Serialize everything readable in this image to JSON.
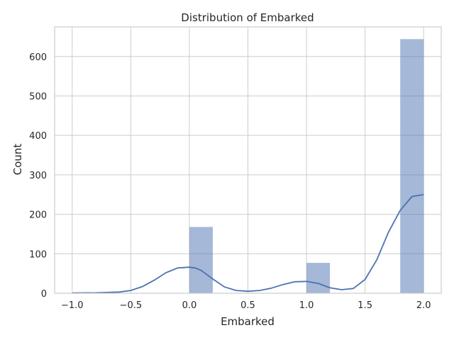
{
  "chart_data": {
    "type": "bar",
    "title": "Distribution of Embarked",
    "xlabel": "Embarked",
    "ylabel": "Count",
    "xlim": [
      -1.15,
      2.15
    ],
    "ylim": [
      0,
      675
    ],
    "x_ticks": [
      -1.0,
      -0.5,
      0.0,
      0.5,
      1.0,
      1.5,
      2.0
    ],
    "x_tick_labels": [
      "−1.0",
      "−0.5",
      "0.0",
      "0.5",
      "1.0",
      "1.5",
      "2.0"
    ],
    "y_ticks": [
      0,
      100,
      200,
      300,
      400,
      500,
      600
    ],
    "y_tick_labels": [
      "0",
      "100",
      "200",
      "300",
      "400",
      "500",
      "600"
    ],
    "grid": true,
    "bins": [
      {
        "x0": -1.0,
        "x1": -0.8,
        "count": 2
      },
      {
        "x0": 0.0,
        "x1": 0.2,
        "count": 168
      },
      {
        "x0": 1.0,
        "x1": 1.2,
        "count": 77
      },
      {
        "x0": 1.8,
        "x1": 2.0,
        "count": 644
      }
    ],
    "kde": {
      "x": [
        -1.0,
        -0.8,
        -0.6,
        -0.5,
        -0.4,
        -0.3,
        -0.2,
        -0.1,
        0.0,
        0.05,
        0.1,
        0.2,
        0.3,
        0.4,
        0.5,
        0.6,
        0.7,
        0.8,
        0.9,
        1.0,
        1.1,
        1.2,
        1.3,
        1.4,
        1.5,
        1.6,
        1.7,
        1.8,
        1.9,
        2.0
      ],
      "y": [
        0.5,
        1,
        3,
        7,
        17,
        33,
        52,
        64,
        66,
        64,
        58,
        36,
        16,
        7,
        5,
        7,
        13,
        22,
        29,
        30,
        25,
        14,
        9,
        12,
        35,
        85,
        155,
        210,
        245,
        250
      ]
    },
    "colors": {
      "bar": "#4c72b0",
      "kde": "#4c72b0",
      "grid": "#cccccc"
    }
  }
}
